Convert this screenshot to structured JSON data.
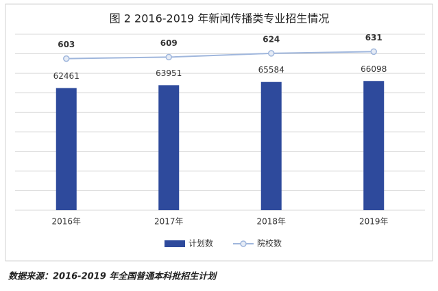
{
  "chart_data": {
    "type": "bar",
    "title": "图 2 2016-2019 年新闻传播类专业招生情况",
    "categories": [
      "2016年",
      "2017年",
      "2018年",
      "2019年"
    ],
    "series": [
      {
        "name": "计划数",
        "type": "bar",
        "color": "#2e4a9c",
        "values": [
          62461,
          63951,
          65584,
          66098
        ]
      },
      {
        "name": "院校数",
        "type": "line",
        "axis": "y2",
        "color": "#9fb6dc",
        "values": [
          603,
          609,
          624,
          631
        ]
      }
    ],
    "ylim": [
      0,
      90000
    ],
    "yticks": [
      0,
      10000,
      20000,
      30000,
      40000,
      50000,
      60000,
      70000,
      80000,
      90000
    ],
    "y2lim": [
      0,
      700
    ],
    "grid": true,
    "legend": "bottom",
    "source": "数据来源：2016-2019 年全国普通本科批招生计划"
  }
}
